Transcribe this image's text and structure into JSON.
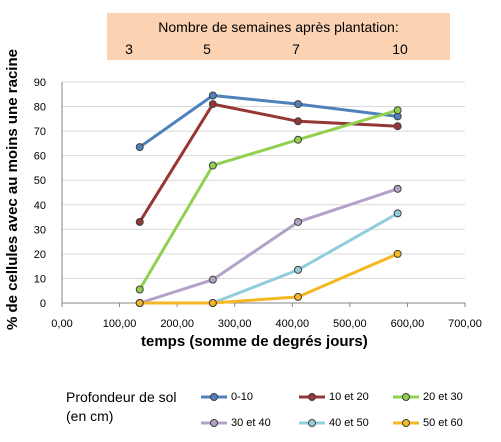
{
  "week_axis": {
    "title": "Nombre de semaines après plantation:",
    "weeks": [
      "3",
      "5",
      "7",
      "10"
    ]
  },
  "chart_data": {
    "type": "line",
    "title": "",
    "xlabel": "temps (somme de degrés jours)",
    "ylabel": "% de cellules avec au moins une racine",
    "xlim": [
      0,
      700
    ],
    "ylim": [
      0,
      90
    ],
    "x_ticks": [
      "0,00",
      "100,00",
      "200,00",
      "300,00",
      "400,00",
      "500,00",
      "600,00",
      "700,00"
    ],
    "y_ticks": [
      "0",
      "10",
      "20",
      "30",
      "40",
      "50",
      "60",
      "70",
      "80",
      "90"
    ],
    "grid": true,
    "x": [
      135,
      262,
      410,
      583
    ],
    "series": [
      {
        "name": "0-10",
        "color": "#4f81bd",
        "values": [
          63.5,
          84.5,
          81,
          76
        ]
      },
      {
        "name": "10 et 20",
        "color": "#953735",
        "values": [
          33,
          81,
          74,
          72
        ]
      },
      {
        "name": "20 et 30",
        "color": "#92d050",
        "values": [
          5.5,
          56,
          66.5,
          78.5
        ]
      },
      {
        "name": "30 et 40",
        "color": "#b3a2c7",
        "values": [
          0,
          9.5,
          33,
          46.5
        ]
      },
      {
        "name": "40 et 50",
        "color": "#92cddc",
        "values": [
          0,
          0,
          13.5,
          36.5
        ]
      },
      {
        "name": "50 et 60",
        "color": "#f6b822",
        "values": [
          0,
          0,
          2.5,
          20
        ]
      }
    ],
    "legend_title": "Profondeur de sol (en cm)",
    "legend_position": "bottom"
  }
}
